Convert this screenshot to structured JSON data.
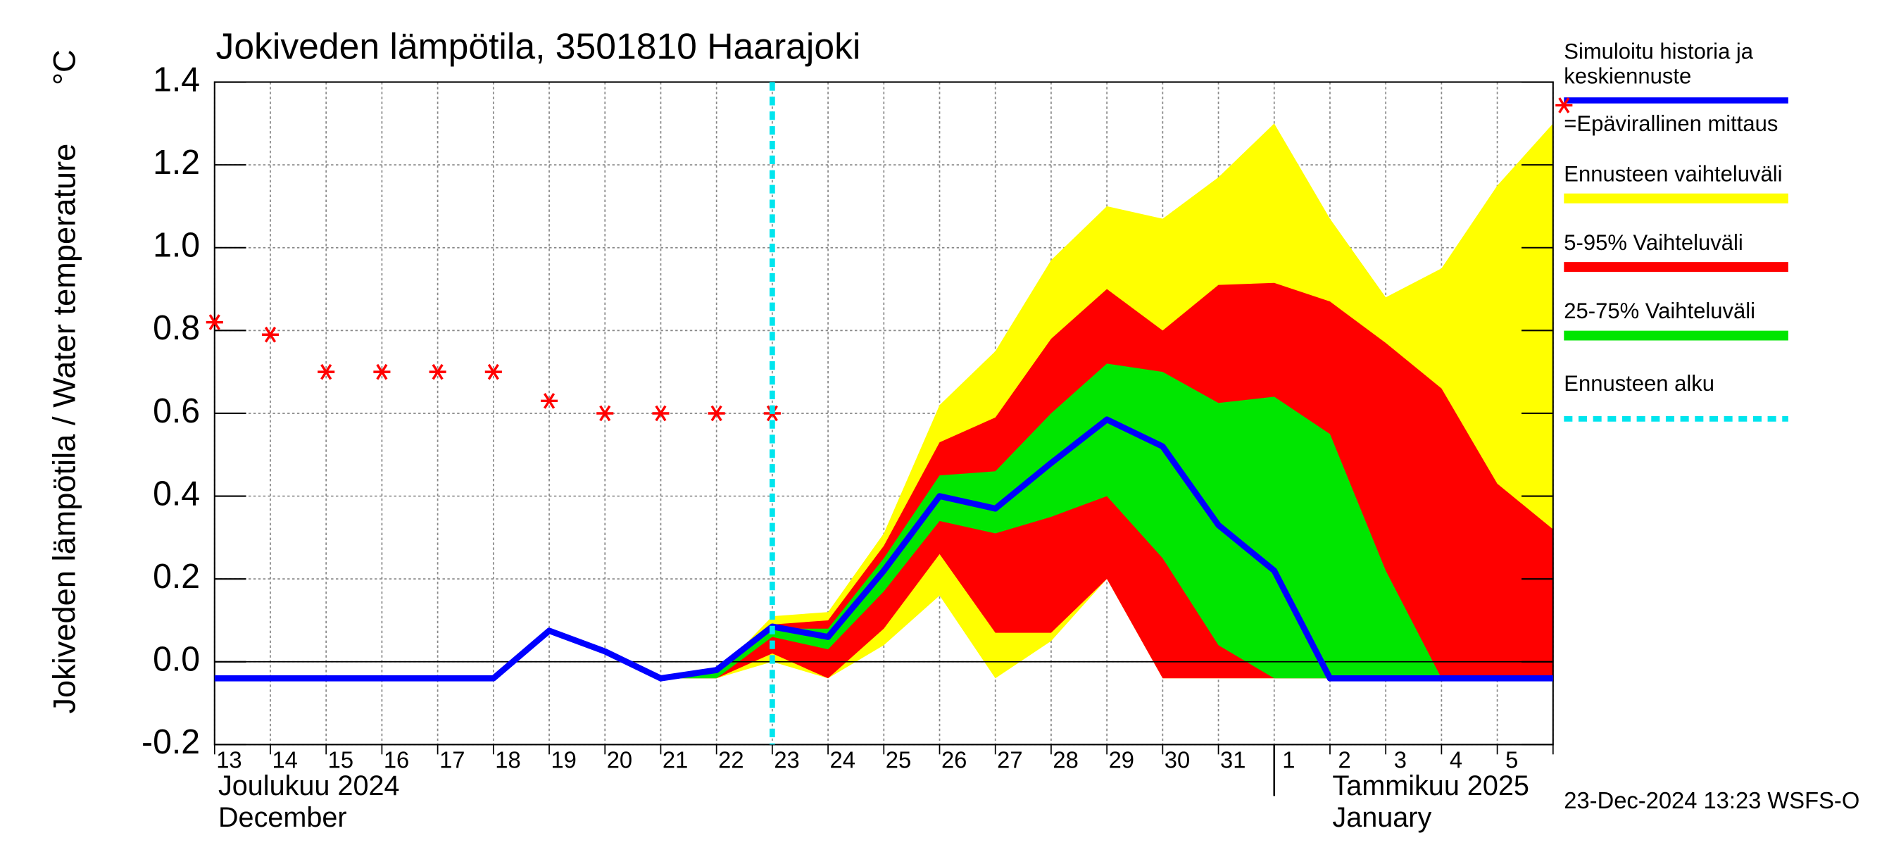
{
  "chart_data": {
    "type": "band-line",
    "title": "Jokiveden lämpötila, 3501810 Haarajoki",
    "y_label": "Jokiveden lämpötila / Water temperature",
    "y_unit": "°C",
    "categories": [
      "13",
      "14",
      "15",
      "16",
      "17",
      "18",
      "19",
      "20",
      "21",
      "22",
      "23",
      "24",
      "25",
      "26",
      "27",
      "28",
      "29",
      "30",
      "31",
      "1",
      "2",
      "3",
      "4",
      "5",
      null
    ],
    "months": [
      {
        "name": "Joulukuu  2024",
        "name_en": "December",
        "start": "13"
      },
      {
        "name": "Tammikuu  2025",
        "name_en": "January",
        "start": "1"
      }
    ],
    "ylim": [
      -0.2,
      1.4
    ],
    "yticks": [
      -0.2,
      {
        "value": 0,
        "label": "0.0"
      },
      0.2,
      0.4,
      0.6,
      0.8,
      {
        "value": 1,
        "label": "1.0"
      },
      1.2,
      1.4
    ],
    "grid": true,
    "series": [
      {
        "name": "Simuloitu historia ja keskiennuste",
        "kind": "line",
        "color": "#0000ff",
        "values": [
          -0.04,
          -0.04,
          -0.04,
          -0.04,
          -0.04,
          -0.04,
          0.075,
          0.025,
          -0.04,
          -0.02,
          0.085,
          0.06,
          0.22,
          0.4,
          0.37,
          0.48,
          0.585,
          0.52,
          0.33,
          0.22,
          -0.04,
          -0.04,
          -0.04,
          -0.04,
          -0.04
        ]
      },
      {
        "name": "=Epävirallinen mittaus",
        "kind": "marker",
        "color": "#ff0000",
        "values": [
          0.82,
          0.79,
          0.7,
          0.7,
          0.7,
          0.7,
          0.63,
          0.6,
          0.6,
          0.6,
          0.6,
          null,
          null,
          null,
          null,
          null,
          null,
          null,
          null,
          null,
          null,
          null,
          null,
          null,
          null
        ]
      },
      {
        "name": "Ennusteen vaihteluväli",
        "kind": "band",
        "color": "#ffff00",
        "values": [
          null,
          null,
          null,
          null,
          null,
          null,
          null,
          null,
          -0.04,
          -0.03,
          0.11,
          0.12,
          0.31,
          0.62,
          0.75,
          0.97,
          1.1,
          1.07,
          1.17,
          1.3,
          1.07,
          0.88,
          0.95,
          1.15,
          1.3
        ],
        "lower": [
          null,
          null,
          null,
          null,
          null,
          null,
          null,
          null,
          -0.04,
          -0.04,
          0.0,
          -0.04,
          0.04,
          0.16,
          -0.04,
          0.05,
          0.2,
          -0.04,
          -0.04,
          -0.04,
          -0.04,
          -0.04,
          -0.04,
          -0.04,
          -0.04
        ]
      },
      {
        "name": "5-95% Vaihteluväli",
        "kind": "band",
        "color": "#ff0000",
        "values": [
          null,
          null,
          null,
          null,
          null,
          null,
          null,
          null,
          -0.04,
          -0.03,
          0.09,
          0.1,
          0.28,
          0.53,
          0.59,
          0.78,
          0.9,
          0.8,
          0.91,
          0.915,
          0.87,
          0.77,
          0.66,
          0.43,
          0.32
        ],
        "lower": [
          null,
          null,
          null,
          null,
          null,
          null,
          null,
          null,
          -0.04,
          -0.04,
          0.02,
          -0.04,
          0.08,
          0.26,
          0.07,
          0.07,
          0.2,
          -0.04,
          -0.04,
          -0.04,
          -0.04,
          -0.04,
          -0.04,
          -0.04,
          -0.04
        ]
      },
      {
        "name": "25-75% Vaihteluväli",
        "kind": "band",
        "color": "#00e600",
        "values": [
          null,
          null,
          null,
          null,
          null,
          null,
          null,
          null,
          -0.04,
          -0.02,
          0.08,
          0.08,
          0.25,
          0.45,
          0.46,
          0.6,
          0.72,
          0.7,
          0.625,
          0.64,
          0.55,
          0.22,
          -0.04,
          -0.04,
          -0.04
        ],
        "lower": [
          null,
          null,
          null,
          null,
          null,
          null,
          null,
          null,
          -0.04,
          -0.04,
          0.06,
          0.03,
          0.17,
          0.34,
          0.31,
          0.35,
          0.4,
          0.25,
          0.04,
          -0.04,
          -0.04,
          -0.04,
          -0.04,
          -0.04,
          -0.04
        ]
      }
    ],
    "forecast_start": {
      "name": "Ennusteen alku",
      "color": "#00e5ee",
      "category": "23"
    },
    "footer": "23-Dec-2024 13:23 WSFS-O"
  }
}
